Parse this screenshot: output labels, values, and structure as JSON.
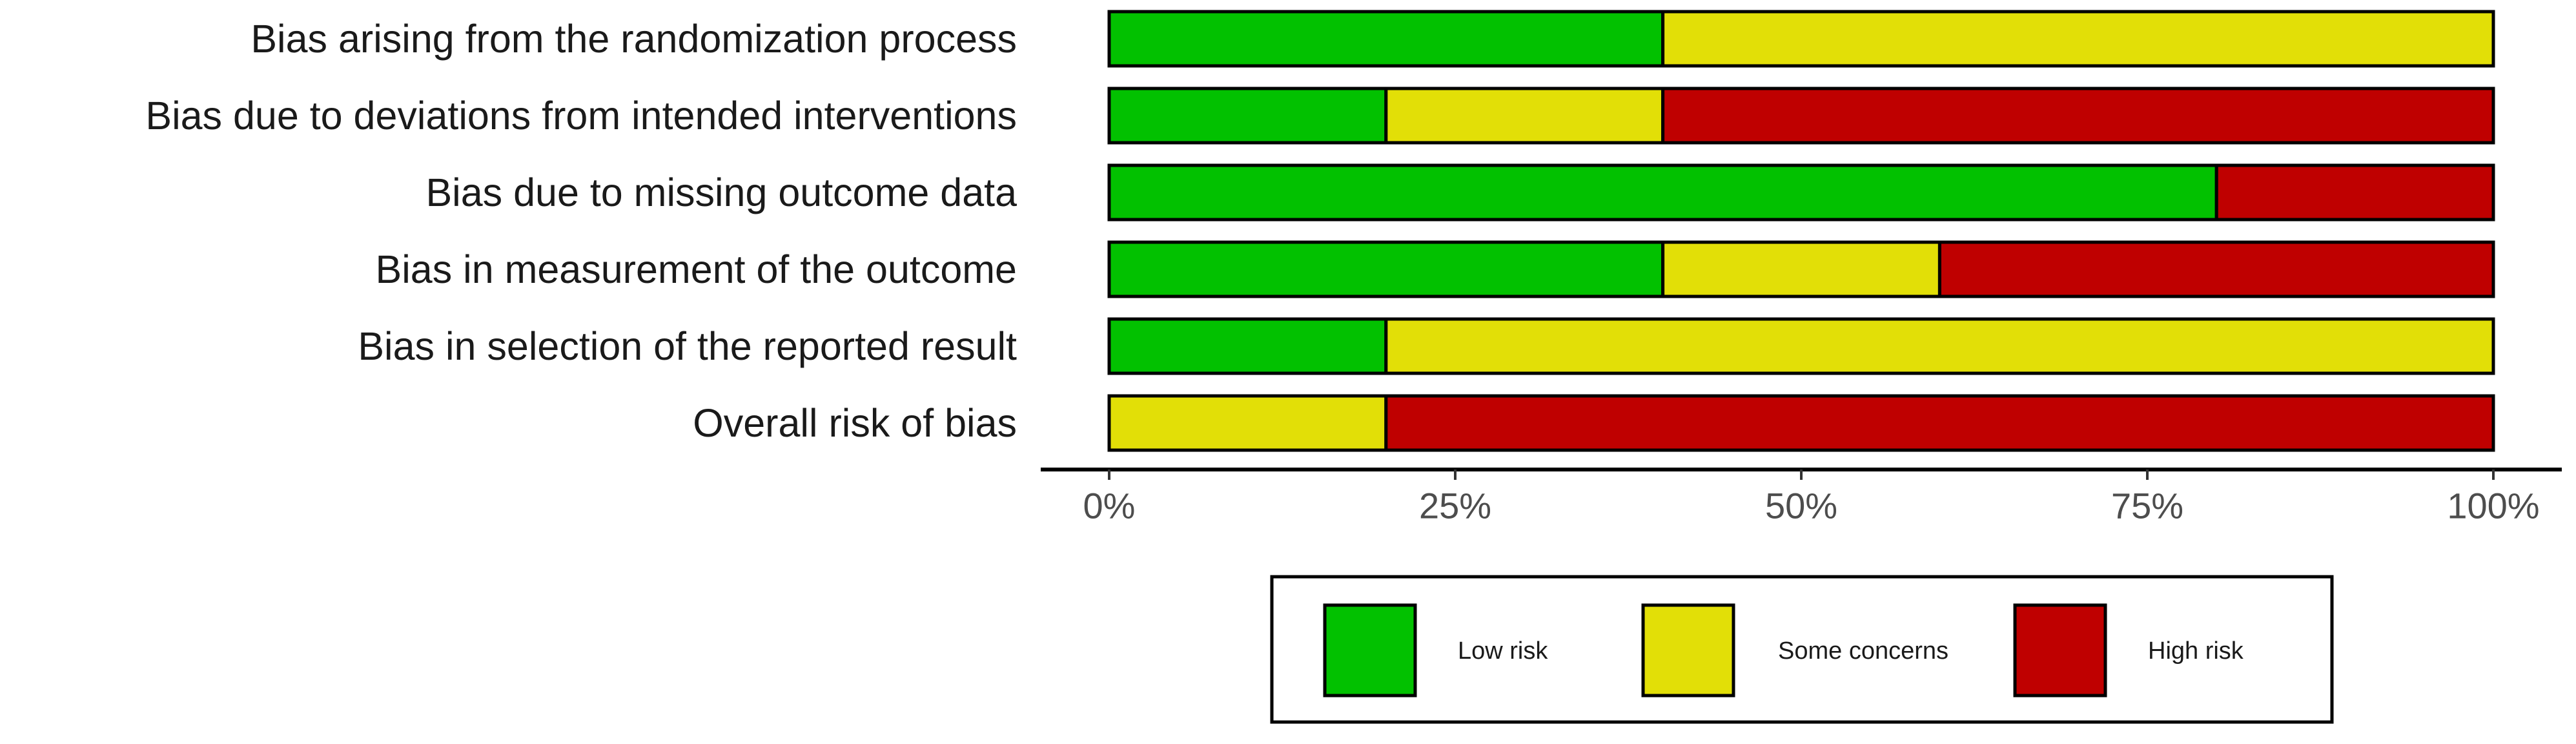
{
  "chart_data": {
    "type": "bar",
    "stacked": true,
    "orientation": "horizontal",
    "title": "",
    "xlabel": "",
    "ylabel": "",
    "xlim": [
      0,
      100
    ],
    "x_ticks": [
      0,
      25,
      50,
      75,
      100
    ],
    "x_tick_labels": [
      "0%",
      "25%",
      "50%",
      "75%",
      "100%"
    ],
    "grid": false,
    "legend_position": "bottom",
    "categories": [
      "Bias arising from the randomization process",
      "Bias due to deviations from intended interventions",
      "Bias due to missing outcome data",
      "Bias in measurement of the outcome",
      "Bias in selection of the reported result",
      "Overall risk of bias"
    ],
    "series": [
      {
        "name": "Low risk",
        "color": "#02C100",
        "values": [
          40,
          20,
          80,
          40,
          20,
          0
        ]
      },
      {
        "name": "Some concerns",
        "color": "#E2DF07",
        "values": [
          60,
          20,
          0,
          20,
          80,
          20
        ]
      },
      {
        "name": "High risk",
        "color": "#BF0000",
        "values": [
          0,
          60,
          20,
          40,
          0,
          80
        ]
      }
    ]
  }
}
